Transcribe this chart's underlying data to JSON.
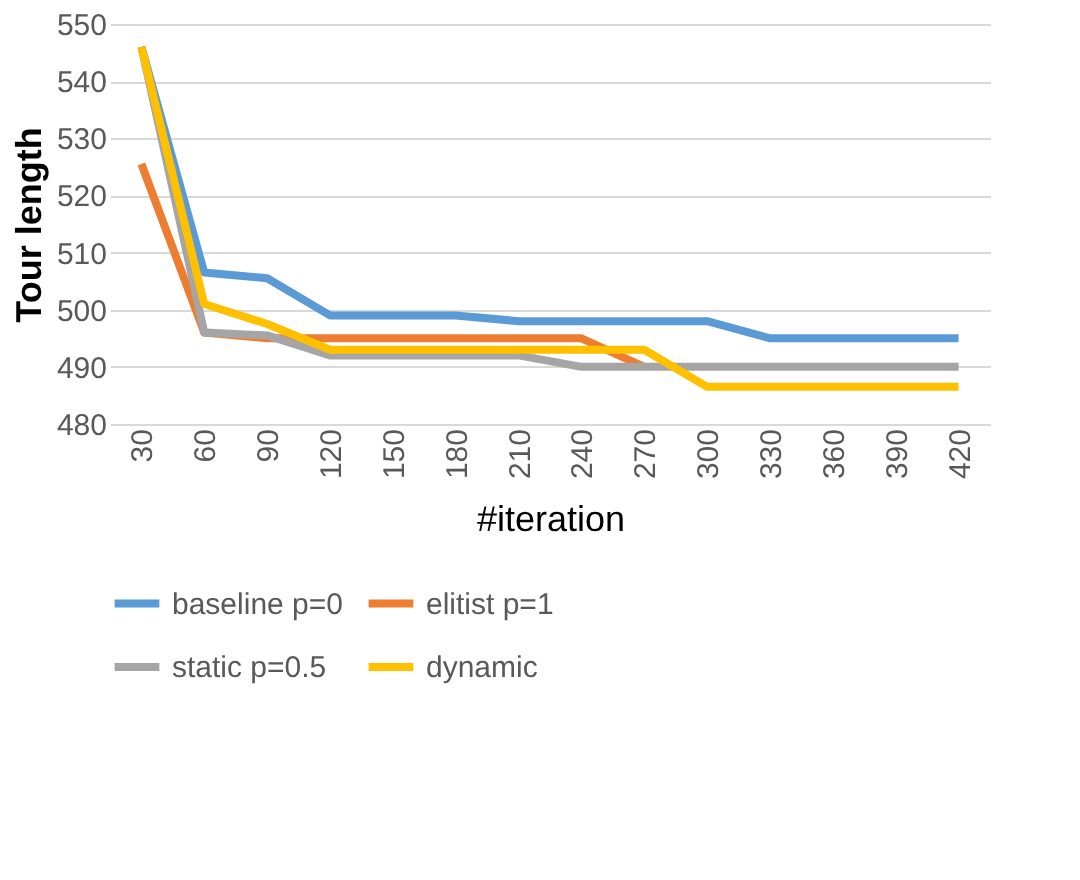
{
  "chart_data": {
    "type": "line",
    "xlabel": "#iteration",
    "ylabel": "Tour length",
    "categories": [
      "30",
      "60",
      "90",
      "120",
      "150",
      "180",
      "210",
      "240",
      "270",
      "300",
      "330",
      "360",
      "390",
      "420"
    ],
    "series": [
      {
        "name": "baseline p=0",
        "color": "#5b9bd5",
        "values": [
          546,
          506.5,
          505.5,
          499,
          499,
          499,
          498,
          498,
          498,
          498,
          495,
          495,
          495,
          495
        ]
      },
      {
        "name": "elitist p=1",
        "color": "#ed7d31",
        "values": [
          525.5,
          496,
          495,
          495,
          495,
          495,
          495,
          495,
          490,
          null,
          null,
          null,
          null,
          null
        ]
      },
      {
        "name": "static p=0.5",
        "color": "#a5a5a5",
        "values": [
          546,
          496,
          495.5,
          492,
          492,
          492,
          492,
          490,
          490,
          490,
          490,
          490,
          490,
          490
        ]
      },
      {
        "name": "dynamic",
        "color": "#ffc000",
        "values": [
          546,
          501,
          497.5,
          493,
          493,
          493,
          493,
          493,
          493,
          486.5,
          486.5,
          486.5,
          486.5,
          486.5
        ]
      }
    ],
    "ylim": [
      480,
      550
    ],
    "yticks": [
      480,
      490,
      500,
      510,
      520,
      530,
      540,
      550
    ],
    "grid": "y",
    "legend": "bottom",
    "marker": "none",
    "line_style": "solid"
  }
}
